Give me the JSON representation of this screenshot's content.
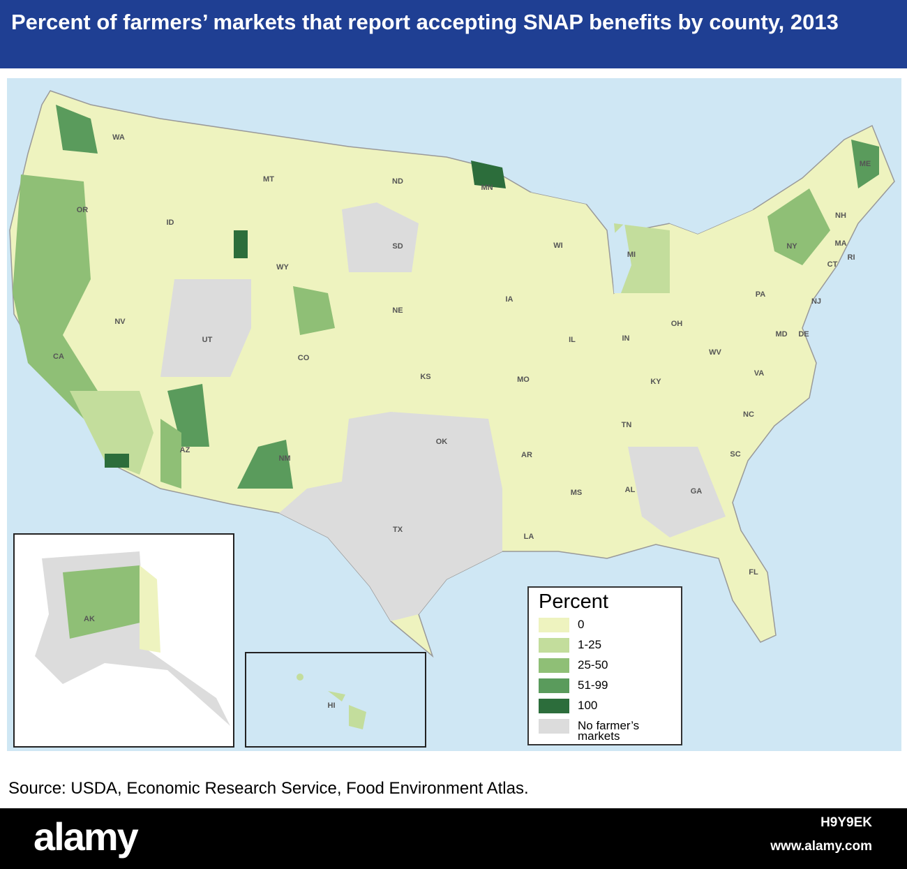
{
  "header": {
    "title": "Percent of farmers’ markets that report accepting SNAP benefits by county, 2013"
  },
  "legend": {
    "title": "Percent",
    "items": [
      {
        "label": "0",
        "color": "#eef3bf"
      },
      {
        "label": "1-25",
        "color": "#c3dd9c"
      },
      {
        "label": "25-50",
        "color": "#8fbf76"
      },
      {
        "label": "51-99",
        "color": "#5a9b5c"
      },
      {
        "label": "100",
        "color": "#2c6d3b"
      },
      {
        "label": "No farmer’s markets",
        "color": "#dcdcdc"
      }
    ]
  },
  "state_labels": [
    "WA",
    "MT",
    "ND",
    "MN",
    "OR",
    "ID",
    "SD",
    "WY",
    "WI",
    "MI",
    "ME",
    "NH",
    "NY",
    "MA",
    "CT",
    "RI",
    "NV",
    "UT",
    "NE",
    "IA",
    "PA",
    "NJ",
    "OH",
    "IN",
    "IL",
    "CA",
    "CO",
    "KS",
    "MO",
    "WV",
    "MD",
    "DE",
    "KY",
    "VA",
    "AZ",
    "NM",
    "OK",
    "AR",
    "TN",
    "NC",
    "SC",
    "MS",
    "AL",
    "GA",
    "TX",
    "LA",
    "FL",
    "AK",
    "HI"
  ],
  "source": "Source: USDA, Economic Research Service, Food Environment Atlas.",
  "footer": {
    "brand": "alamy",
    "id": "H9Y9EK",
    "url": "www.alamy.com"
  }
}
